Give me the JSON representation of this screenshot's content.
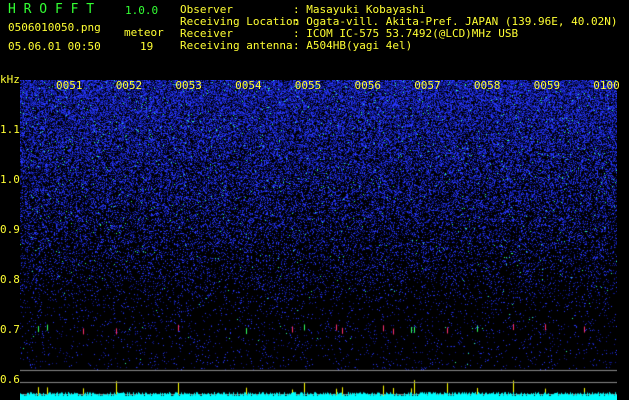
{
  "app": {
    "name": "H R O F F T",
    "version": "1.0.0"
  },
  "file": {
    "name": "0506010050.png",
    "datetime": "05.06.01 00:50"
  },
  "meteor": {
    "label": "meteor",
    "count": "19"
  },
  "info": [
    {
      "label": "Observer",
      "value": ": Masayuki Kobayashi"
    },
    {
      "label": "Receiving Location",
      "value": ": Ogata-vill. Akita-Pref. JAPAN (139.96E, 40.02N)"
    },
    {
      "label": "Receiver",
      "value": ": ICOM IC-575 53.7492(@LCD)MHz USB"
    },
    {
      "label": "Receiving antenna",
      "value": ": A504HB(yagi 4el)"
    }
  ],
  "axis": {
    "unit": "kHz",
    "freq_labels": [
      "1.1",
      "1.0",
      "0.9",
      "0.8",
      "0.7",
      "0.6"
    ],
    "time_labels": [
      "0051",
      "0052",
      "0053",
      "0054",
      "0055",
      "0056",
      "0057",
      "0058",
      "0059",
      "0100"
    ]
  },
  "colors": {
    "text": "#ffff33",
    "title": "#33ff33",
    "noise": "#2030ff",
    "level": "#00ffff",
    "meteor_bar": "#ffff00"
  },
  "meteor_times": [
    0.03,
    0.045,
    0.105,
    0.16,
    0.265,
    0.378,
    0.455,
    0.475,
    0.53,
    0.54,
    0.608,
    0.625,
    0.655,
    0.66,
    0.715,
    0.765,
    0.825,
    0.88,
    0.945
  ]
}
